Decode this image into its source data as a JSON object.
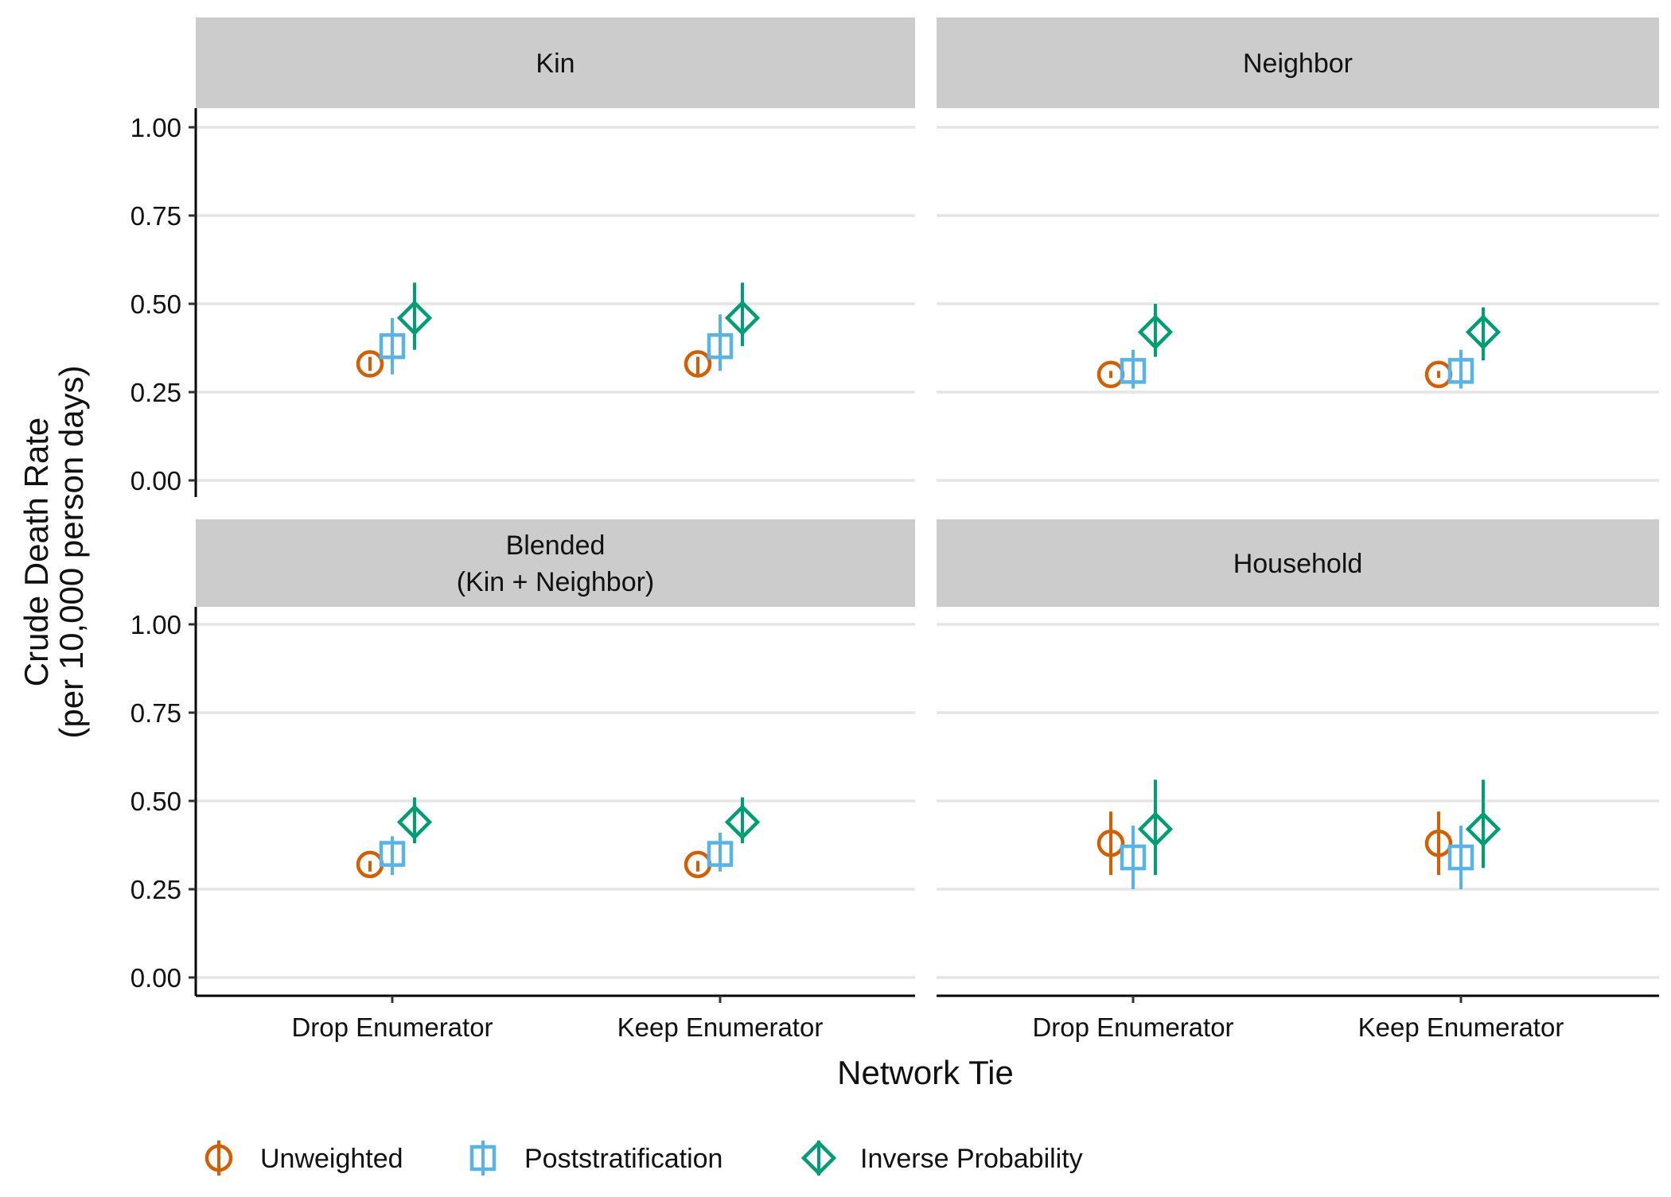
{
  "chart_data": {
    "type": "scatter",
    "x_label": "Network Tie",
    "y_label_lines": [
      "Crude Death Rate",
      "(per 10,000 person days)"
    ],
    "x_categories": [
      "Drop Enumerator",
      "Keep Enumerator"
    ],
    "y_ticks": [
      "0.00",
      "0.25",
      "0.50",
      "0.75",
      "1.00"
    ],
    "y_tick_values": [
      0,
      0.25,
      0.5,
      0.75,
      1.0
    ],
    "ylim": [
      -0.05,
      1.05
    ],
    "grid": "horizontal major lines",
    "legend_position": "bottom-left",
    "series": [
      {
        "name": "Unweighted",
        "shape": "circle",
        "color": "#D55E00"
      },
      {
        "name": "Poststratification",
        "shape": "square",
        "color": "#56B4E9"
      },
      {
        "name": "Inverse Probability",
        "shape": "diamond",
        "color": "#009E73"
      }
    ],
    "panels": [
      {
        "title_lines": [
          "Kin"
        ],
        "points": [
          {
            "category": "Drop Enumerator",
            "series": "Unweighted",
            "y": 0.33,
            "low": 0.31,
            "high": 0.35
          },
          {
            "category": "Drop Enumerator",
            "series": "Poststratification",
            "y": 0.38,
            "low": 0.3,
            "high": 0.46
          },
          {
            "category": "Drop Enumerator",
            "series": "Inverse Probability",
            "y": 0.46,
            "low": 0.37,
            "high": 0.56
          },
          {
            "category": "Keep Enumerator",
            "series": "Unweighted",
            "y": 0.33,
            "low": 0.3,
            "high": 0.35
          },
          {
            "category": "Keep Enumerator",
            "series": "Poststratification",
            "y": 0.38,
            "low": 0.31,
            "high": 0.47
          },
          {
            "category": "Keep Enumerator",
            "series": "Inverse Probability",
            "y": 0.46,
            "low": 0.38,
            "high": 0.56
          }
        ]
      },
      {
        "title_lines": [
          "Neighbor"
        ],
        "points": [
          {
            "category": "Drop Enumerator",
            "series": "Unweighted",
            "y": 0.3,
            "low": 0.29,
            "high": 0.31
          },
          {
            "category": "Drop Enumerator",
            "series": "Poststratification",
            "y": 0.31,
            "low": 0.26,
            "high": 0.37
          },
          {
            "category": "Drop Enumerator",
            "series": "Inverse Probability",
            "y": 0.42,
            "low": 0.35,
            "high": 0.5
          },
          {
            "category": "Keep Enumerator",
            "series": "Unweighted",
            "y": 0.3,
            "low": 0.29,
            "high": 0.31
          },
          {
            "category": "Keep Enumerator",
            "series": "Poststratification",
            "y": 0.31,
            "low": 0.26,
            "high": 0.37
          },
          {
            "category": "Keep Enumerator",
            "series": "Inverse Probability",
            "y": 0.42,
            "low": 0.34,
            "high": 0.49
          }
        ]
      },
      {
        "title_lines": [
          "Blended",
          "(Kin + Neighbor)"
        ],
        "points": [
          {
            "category": "Drop Enumerator",
            "series": "Unweighted",
            "y": 0.32,
            "low": 0.3,
            "high": 0.33
          },
          {
            "category": "Drop Enumerator",
            "series": "Poststratification",
            "y": 0.35,
            "low": 0.29,
            "high": 0.4
          },
          {
            "category": "Drop Enumerator",
            "series": "Inverse Probability",
            "y": 0.44,
            "low": 0.38,
            "high": 0.51
          },
          {
            "category": "Keep Enumerator",
            "series": "Unweighted",
            "y": 0.32,
            "low": 0.3,
            "high": 0.33
          },
          {
            "category": "Keep Enumerator",
            "series": "Poststratification",
            "y": 0.35,
            "low": 0.3,
            "high": 0.41
          },
          {
            "category": "Keep Enumerator",
            "series": "Inverse Probability",
            "y": 0.44,
            "low": 0.38,
            "high": 0.51
          }
        ]
      },
      {
        "title_lines": [
          "Household"
        ],
        "points": [
          {
            "category": "Drop Enumerator",
            "series": "Unweighted",
            "y": 0.38,
            "low": 0.29,
            "high": 0.47
          },
          {
            "category": "Drop Enumerator",
            "series": "Poststratification",
            "y": 0.34,
            "low": 0.25,
            "high": 0.43
          },
          {
            "category": "Drop Enumerator",
            "series": "Inverse Probability",
            "y": 0.42,
            "low": 0.29,
            "high": 0.56
          },
          {
            "category": "Keep Enumerator",
            "series": "Unweighted",
            "y": 0.38,
            "low": 0.29,
            "high": 0.47
          },
          {
            "category": "Keep Enumerator",
            "series": "Poststratification",
            "y": 0.34,
            "low": 0.25,
            "high": 0.43
          },
          {
            "category": "Keep Enumerator",
            "series": "Inverse Probability",
            "y": 0.42,
            "low": 0.31,
            "high": 0.56
          }
        ]
      }
    ]
  }
}
